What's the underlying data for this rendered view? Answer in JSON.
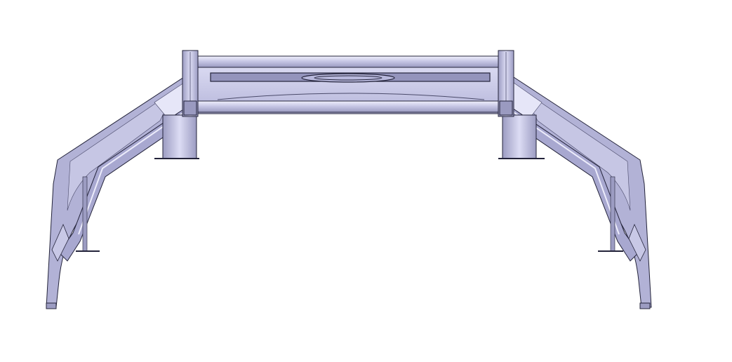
{
  "scene": {
    "subject": "",
    "colors": {
      "background": "#ffffff",
      "body": "#a9a9cc",
      "body_light": "#d4d4ee",
      "body_mid": "#bcbcde",
      "body_dark": "#8c8cb4",
      "highlight": "#ececfb",
      "edge": "#23233a"
    }
  }
}
